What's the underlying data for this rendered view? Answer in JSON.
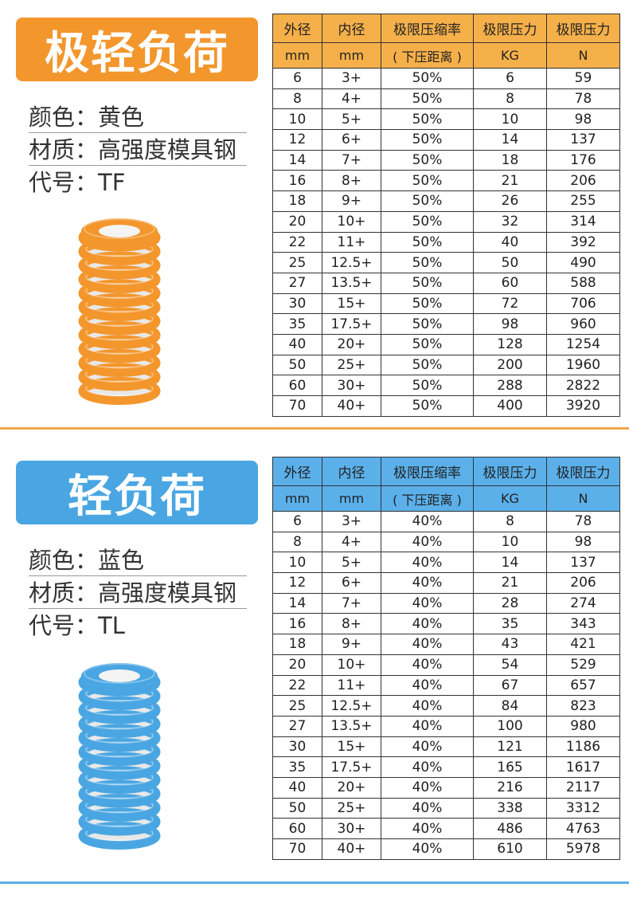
{
  "columns": {
    "row1": [
      "外径",
      "内径",
      "极限压缩率",
      "极限压力",
      "极限压力"
    ],
    "row2": [
      "mm",
      "mm",
      "( 下压距离 )",
      "KG",
      "N"
    ]
  },
  "prop_labels": {
    "color": "颜色：",
    "material": "材质：",
    "code": "代号："
  },
  "sections": [
    {
      "title": "极轻负荷",
      "accent": "#f3962c",
      "header_bg": "#f6b04a",
      "divider_color": "#f0a750",
      "color_value": "黄色",
      "material_value": "高强度模具钢",
      "code_value": "TF",
      "rows": [
        [
          "6",
          "3+",
          "50%",
          "6",
          "59"
        ],
        [
          "8",
          "4+",
          "50%",
          "8",
          "78"
        ],
        [
          "10",
          "5+",
          "50%",
          "10",
          "98"
        ],
        [
          "12",
          "6+",
          "50%",
          "14",
          "137"
        ],
        [
          "14",
          "7+",
          "50%",
          "18",
          "176"
        ],
        [
          "16",
          "8+",
          "50%",
          "21",
          "206"
        ],
        [
          "18",
          "9+",
          "50%",
          "26",
          "255"
        ],
        [
          "20",
          "10+",
          "50%",
          "32",
          "314"
        ],
        [
          "22",
          "11+",
          "50%",
          "40",
          "392"
        ],
        [
          "25",
          "12.5+",
          "50%",
          "50",
          "490"
        ],
        [
          "27",
          "13.5+",
          "50%",
          "60",
          "588"
        ],
        [
          "30",
          "15+",
          "50%",
          "72",
          "706"
        ],
        [
          "35",
          "17.5+",
          "50%",
          "98",
          "960"
        ],
        [
          "40",
          "20+",
          "50%",
          "128",
          "1254"
        ],
        [
          "50",
          "25+",
          "50%",
          "200",
          "1960"
        ],
        [
          "60",
          "30+",
          "50%",
          "288",
          "2822"
        ],
        [
          "70",
          "40+",
          "50%",
          "400",
          "3920"
        ]
      ]
    },
    {
      "title": "轻负荷",
      "accent": "#4aa6e2",
      "header_bg": "#5bb0ea",
      "divider_color": "#5aaee4",
      "color_value": "蓝色",
      "material_value": "高强度模具钢",
      "code_value": "TL",
      "rows": [
        [
          "6",
          "3+",
          "40%",
          "8",
          "78"
        ],
        [
          "8",
          "4+",
          "40%",
          "10",
          "98"
        ],
        [
          "10",
          "5+",
          "40%",
          "14",
          "137"
        ],
        [
          "12",
          "6+",
          "40%",
          "21",
          "206"
        ],
        [
          "14",
          "7+",
          "40%",
          "28",
          "274"
        ],
        [
          "16",
          "8+",
          "40%",
          "35",
          "343"
        ],
        [
          "18",
          "9+",
          "40%",
          "43",
          "421"
        ],
        [
          "20",
          "10+",
          "40%",
          "54",
          "529"
        ],
        [
          "22",
          "11+",
          "40%",
          "67",
          "657"
        ],
        [
          "25",
          "12.5+",
          "40%",
          "84",
          "823"
        ],
        [
          "27",
          "13.5+",
          "40%",
          "100",
          "980"
        ],
        [
          "30",
          "15+",
          "40%",
          "121",
          "1186"
        ],
        [
          "35",
          "17.5+",
          "40%",
          "165",
          "1617"
        ],
        [
          "40",
          "20+",
          "40%",
          "216",
          "2117"
        ],
        [
          "50",
          "25+",
          "40%",
          "338",
          "3312"
        ],
        [
          "60",
          "30+",
          "40%",
          "486",
          "4763"
        ],
        [
          "70",
          "40+",
          "40%",
          "610",
          "5978"
        ]
      ]
    }
  ]
}
